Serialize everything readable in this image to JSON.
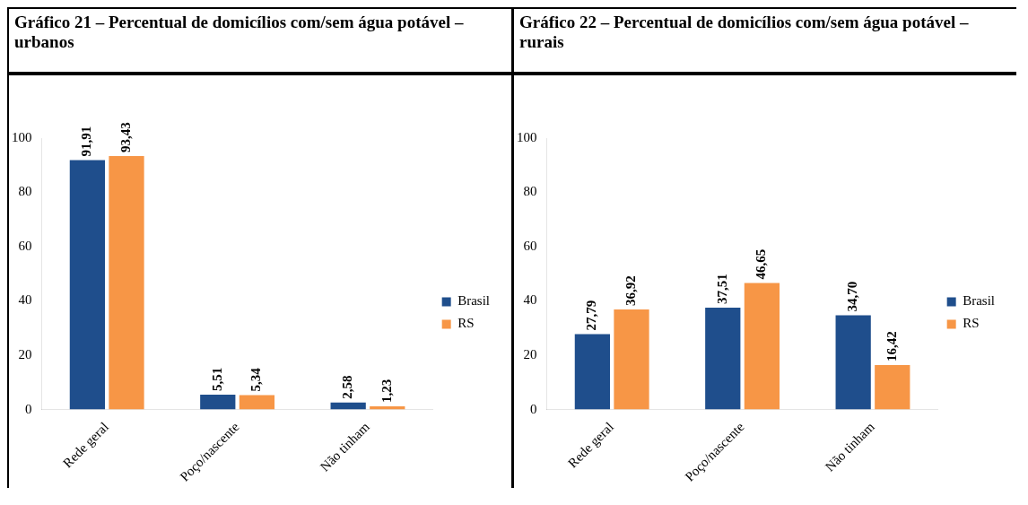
{
  "chart_data": [
    {
      "type": "bar",
      "title": "Gráfico 21 – Percentual de domicílios com/sem água potável – urbanos",
      "categories": [
        "Rede geral",
        "Poço/nascente",
        "Não tinham"
      ],
      "series": [
        {
          "name": "Brasil",
          "color": "#1f4e8c",
          "values": [
            91.91,
            5.51,
            2.58
          ],
          "value_labels": [
            "91,91",
            "5,51",
            "2,58"
          ]
        },
        {
          "name": "RS",
          "color": "#f79646",
          "values": [
            93.43,
            5.34,
            1.23
          ],
          "value_labels": [
            "93,43",
            "5,34",
            "1,23"
          ]
        }
      ],
      "ylim": [
        0,
        100
      ],
      "yticks": [
        0,
        20,
        40,
        60,
        80,
        100
      ],
      "legend": "right"
    },
    {
      "type": "bar",
      "title": "Gráfico 22 – Percentual de domicílios com/sem água potável – rurais",
      "categories": [
        "Rede geral",
        "Poço/nascente",
        "Não tinham"
      ],
      "series": [
        {
          "name": "Brasil",
          "color": "#1f4e8c",
          "values": [
            27.79,
            37.51,
            34.7
          ],
          "value_labels": [
            "27,79",
            "37,51",
            "34,70"
          ]
        },
        {
          "name": "RS",
          "color": "#f79646",
          "values": [
            36.92,
            46.65,
            16.42
          ],
          "value_labels": [
            "36,92",
            "46,65",
            "16,42"
          ]
        }
      ],
      "ylim": [
        0,
        100
      ],
      "yticks": [
        0,
        20,
        40,
        60,
        80,
        100
      ],
      "legend": "right"
    }
  ]
}
